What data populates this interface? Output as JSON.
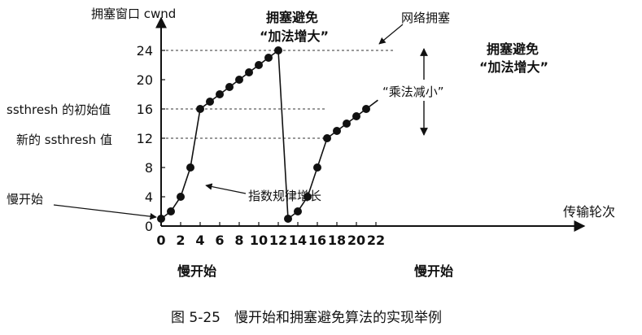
{
  "chart_data": {
    "type": "line",
    "ylabel": "拥塞窗口 cwnd",
    "xlabel": "传输轮次",
    "xlim": [
      0,
      22
    ],
    "ylim": [
      0,
      24
    ],
    "xticks": [
      0,
      2,
      4,
      6,
      8,
      10,
      12,
      14,
      16,
      18,
      20,
      22
    ],
    "yticks": [
      0,
      4,
      8,
      12,
      16,
      20,
      24
    ],
    "series": [
      {
        "x": [
          0,
          1,
          2,
          3,
          4,
          5,
          6,
          7,
          8,
          9,
          10,
          11,
          12
        ],
        "y": [
          1,
          2,
          4,
          8,
          16,
          17,
          18,
          19,
          20,
          21,
          22,
          23,
          24
        ]
      },
      {
        "x": [
          13,
          14,
          15,
          16,
          17,
          18,
          19,
          20,
          21
        ],
        "y": [
          1,
          2,
          4,
          8,
          12,
          13,
          14,
          15,
          16
        ]
      }
    ],
    "reference_lines": [
      24,
      16,
      12
    ],
    "annotations": {
      "slow_start_point": "慢开始",
      "exponential_growth": "指数规律增长",
      "ssthresh_initial": "ssthresh 的初始值",
      "ssthresh_new": "新的 ssthresh 值",
      "congestion_avoidance_1_line1": "拥塞避免",
      "congestion_avoidance_1_line2": "“加法增大”",
      "congestion_avoidance_2_line1": "拥塞避免",
      "congestion_avoidance_2_line2": "“加法增大”",
      "network_congestion": "网络拥塞",
      "multiplicative_decrease": "“乘法减小”",
      "slow_start_label_1": "慢开始",
      "slow_start_label_2": "慢开始"
    }
  },
  "caption": "图 5-25　慢开始和拥塞避免算法的实现举例"
}
